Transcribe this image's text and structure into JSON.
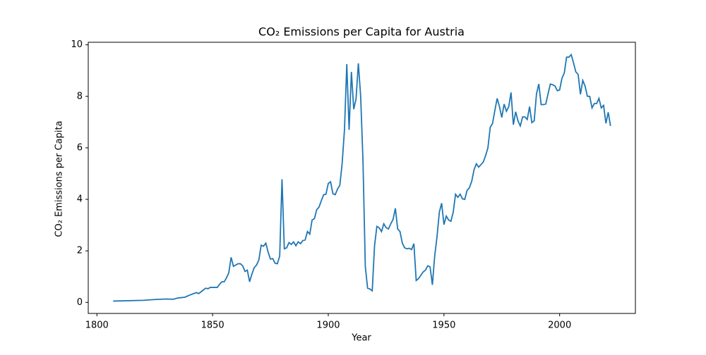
{
  "chart_data": {
    "type": "line",
    "title": "CO₂ Emissions per Capita for Austria",
    "xlabel": "Year",
    "ylabel": "CO₂ Emissions per Capita",
    "x": [
      1807,
      1820,
      1825,
      1830,
      1833,
      1835,
      1838,
      1840,
      1843,
      1844,
      1846,
      1847,
      1848,
      1849,
      1852,
      1853,
      1854,
      1855,
      1856,
      1857,
      1858,
      1859,
      1860,
      1861,
      1862,
      1863,
      1864,
      1865,
      1866,
      1867,
      1868,
      1869,
      1870,
      1871,
      1872,
      1873,
      1874,
      1875,
      1876,
      1877,
      1878,
      1879,
      1880,
      1881,
      1882,
      1883,
      1884,
      1885,
      1886,
      1887,
      1888,
      1889,
      1890,
      1891,
      1892,
      1893,
      1894,
      1895,
      1896,
      1897,
      1898,
      1899,
      1900,
      1901,
      1902,
      1903,
      1904,
      1905,
      1906,
      1907,
      1908,
      1909,
      1910,
      1911,
      1912,
      1913,
      1914,
      1915,
      1916,
      1917,
      1918,
      1919,
      1920,
      1921,
      1922,
      1923,
      1924,
      1925,
      1926,
      1927,
      1928,
      1929,
      1930,
      1931,
      1932,
      1933,
      1934,
      1935,
      1936,
      1937,
      1938,
      1939,
      1940,
      1941,
      1942,
      1943,
      1944,
      1945,
      1946,
      1947,
      1948,
      1949,
      1950,
      1951,
      1952,
      1953,
      1954,
      1955,
      1956,
      1957,
      1958,
      1959,
      1960,
      1961,
      1962,
      1963,
      1964,
      1965,
      1966,
      1967,
      1968,
      1969,
      1970,
      1971,
      1972,
      1973,
      1974,
      1975,
      1976,
      1977,
      1978,
      1979,
      1980,
      1981,
      1982,
      1983,
      1984,
      1985,
      1986,
      1987,
      1988,
      1989,
      1990,
      1991,
      1992,
      1993,
      1994,
      1995,
      1996,
      1997,
      1998,
      1999,
      2000,
      2001,
      2002,
      2003,
      2004,
      2005,
      2006,
      2007,
      2008,
      2009,
      2010,
      2011,
      2012,
      2013,
      2014,
      2015,
      2016,
      2017,
      2018,
      2019,
      2020,
      2021,
      2022
    ],
    "series": [
      {
        "name": "Austria",
        "color": "#1f77b4",
        "values": [
          0.05,
          0.08,
          0.11,
          0.13,
          0.12,
          0.17,
          0.2,
          0.28,
          0.38,
          0.34,
          0.48,
          0.55,
          0.53,
          0.58,
          0.58,
          0.7,
          0.8,
          0.8,
          0.95,
          1.15,
          1.75,
          1.4,
          1.45,
          1.5,
          1.5,
          1.42,
          1.2,
          1.25,
          0.8,
          1.1,
          1.35,
          1.45,
          1.65,
          2.22,
          2.18,
          2.3,
          1.95,
          1.68,
          1.7,
          1.52,
          1.5,
          1.8,
          4.78,
          2.08,
          2.12,
          2.32,
          2.25,
          2.35,
          2.2,
          2.35,
          2.28,
          2.4,
          2.42,
          2.75,
          2.65,
          3.2,
          3.25,
          3.6,
          3.7,
          3.95,
          4.18,
          4.2,
          4.62,
          4.68,
          4.22,
          4.18,
          4.4,
          4.55,
          5.4,
          6.7,
          9.25,
          6.7,
          8.95,
          7.5,
          7.9,
          9.28,
          8.0,
          5.5,
          1.4,
          0.55,
          0.52,
          0.45,
          2.2,
          2.95,
          2.9,
          2.75,
          3.05,
          2.9,
          2.85,
          3.05,
          3.22,
          3.65,
          2.85,
          2.75,
          2.3,
          2.12,
          2.08,
          2.1,
          2.05,
          2.28,
          0.85,
          0.92,
          1.05,
          1.18,
          1.25,
          1.42,
          1.38,
          0.68,
          1.8,
          2.55,
          3.5,
          3.85,
          3.02,
          3.35,
          3.2,
          3.15,
          3.5,
          4.2,
          4.08,
          4.2,
          4.02,
          4.0,
          4.35,
          4.45,
          4.7,
          5.15,
          5.38,
          5.25,
          5.35,
          5.45,
          5.7,
          6.0,
          6.8,
          6.95,
          7.45,
          7.92,
          7.6,
          7.18,
          7.7,
          7.42,
          7.6,
          8.15,
          6.9,
          7.4,
          7.05,
          6.85,
          7.2,
          7.2,
          7.1,
          7.6,
          6.98,
          7.05,
          8.1,
          8.48,
          7.68,
          7.68,
          7.7,
          8.1,
          8.48,
          8.45,
          8.4,
          8.22,
          8.25,
          8.7,
          8.9,
          9.52,
          9.52,
          9.62,
          9.3,
          8.95,
          8.85,
          8.08,
          8.62,
          8.4,
          8.0,
          8.0,
          7.55,
          7.72,
          7.72,
          7.92,
          7.55,
          7.65,
          6.95,
          7.38,
          6.85
        ]
      }
    ],
    "xlim": [
      1796.25,
      2032.75
    ],
    "xticks": [
      1800,
      1850,
      1900,
      1950,
      2000
    ],
    "ylim": [
      -0.43,
      10.1
    ],
    "yticks": [
      0,
      2,
      4,
      6,
      8,
      10
    ]
  }
}
